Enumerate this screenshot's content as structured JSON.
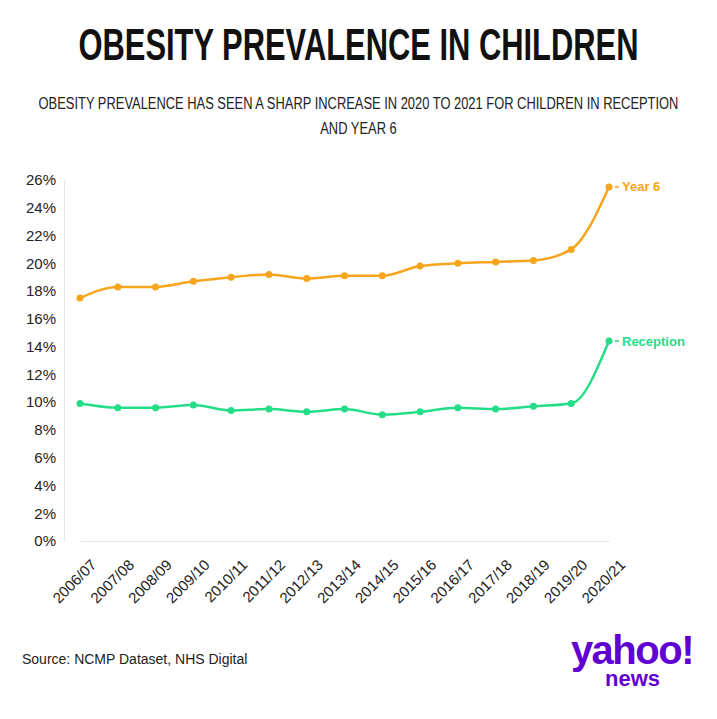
{
  "chart_data": {
    "type": "line",
    "title": "OBESITY PREVALENCE IN CHILDREN",
    "subtitle": "OBESITY PREVALENCE HAS SEEN A SHARP INCREASE IN 2020 TO 2021 FOR CHILDREN IN RECEPTION AND YEAR 6",
    "source": "Source: NCMP Dataset, NHS Digital",
    "annotations": [
      "yahoo!",
      "news"
    ],
    "categories": [
      "2006/07",
      "2007/08",
      "2008/09",
      "2009/10",
      "2010/11",
      "2011/12",
      "2012/13",
      "2013/14",
      "2014/15",
      "2015/16",
      "2016/17",
      "2017/18",
      "2018/19",
      "2019/20",
      "2020/21"
    ],
    "series": [
      {
        "name": "Year 6",
        "color": "#f7a51c",
        "marker": "circle",
        "values": [
          17.5,
          18.3,
          18.3,
          18.7,
          19.0,
          19.2,
          18.9,
          19.1,
          19.1,
          19.8,
          20.0,
          20.1,
          20.2,
          21.0,
          25.5
        ]
      },
      {
        "name": "Reception",
        "color": "#24dd88",
        "marker": "circle",
        "values": [
          9.9,
          9.6,
          9.6,
          9.8,
          9.4,
          9.5,
          9.3,
          9.5,
          9.1,
          9.3,
          9.6,
          9.5,
          9.7,
          9.9,
          14.4
        ]
      }
    ],
    "ylim": [
      0,
      26
    ],
    "yticks": [
      {
        "value": 0,
        "label": "0%"
      },
      {
        "value": 2,
        "label": "2%"
      },
      {
        "value": 4,
        "label": "4%"
      },
      {
        "value": 6,
        "label": "6%"
      },
      {
        "value": 8,
        "label": "8%"
      },
      {
        "value": 10,
        "label": "10%"
      },
      {
        "value": 12,
        "label": "12%"
      },
      {
        "value": 14,
        "label": "14%"
      },
      {
        "value": 16,
        "label": "16%"
      },
      {
        "value": 18,
        "label": "18%"
      },
      {
        "value": 20,
        "label": "20%"
      },
      {
        "value": 22,
        "label": "22%"
      },
      {
        "value": 24,
        "label": "24%"
      },
      {
        "value": 26,
        "label": "26%"
      }
    ],
    "grid": false
  }
}
